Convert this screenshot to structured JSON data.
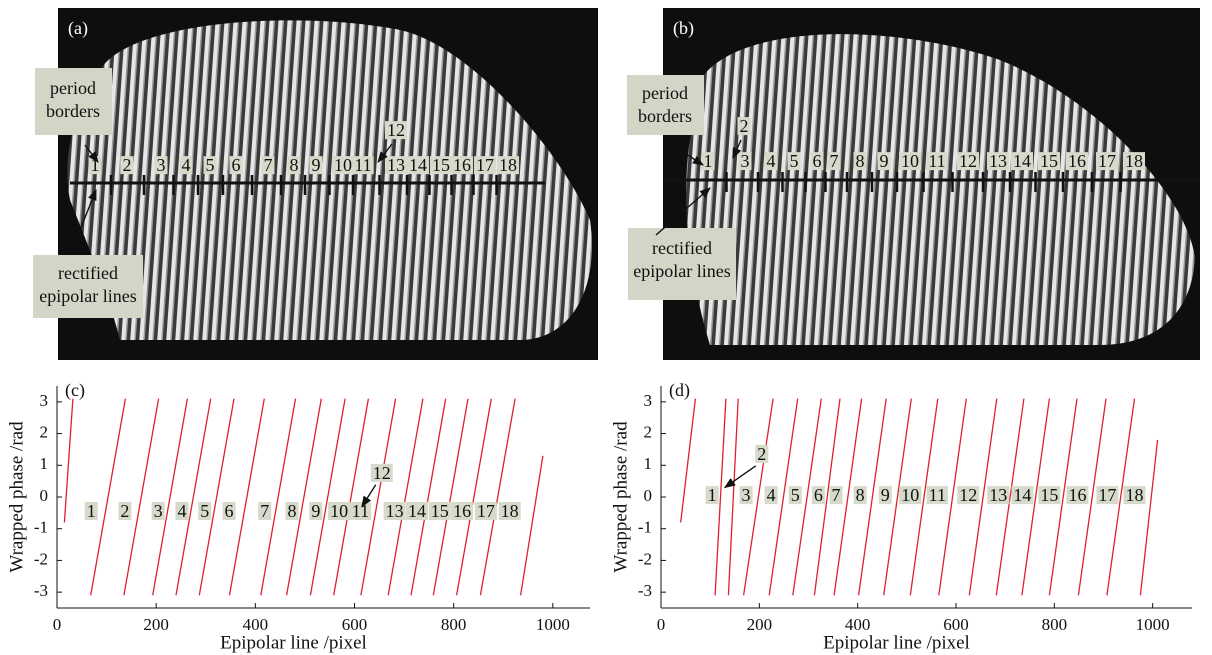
{
  "photos": [
    {
      "label": "(a)",
      "row_numbers": [
        "1",
        "2",
        "3",
        "4",
        "5",
        "6",
        "7",
        "8",
        "9",
        "10",
        "11",
        "13",
        "14",
        "15",
        "16",
        "17",
        "18"
      ],
      "callout_number": "12",
      "notes": [
        [
          "period",
          "borders"
        ],
        [
          "rectified",
          "epipolar lines"
        ]
      ]
    },
    {
      "label": "(b)",
      "row_numbers": [
        "1",
        "3",
        "4",
        "5",
        "6",
        "7",
        "8",
        "9",
        "10",
        "11",
        "12",
        "13",
        "14",
        "15",
        "16",
        "17",
        "18"
      ],
      "callout_number": "2",
      "notes": [
        [
          "period",
          "borders"
        ],
        [
          "rectified",
          "epipolar lines"
        ]
      ]
    }
  ],
  "chart_data": [
    {
      "type": "line",
      "panel": "(c)",
      "x_label": "Epipolar line /pixel",
      "y_label": "Wrapped phase /rad",
      "xlim": [
        0,
        1075
      ],
      "xticks": [
        0,
        200,
        400,
        600,
        800,
        1000
      ],
      "ylim": [
        -3.5,
        3.5
      ],
      "yticks": [
        -3,
        -2,
        -1,
        0,
        1,
        2,
        3
      ],
      "series": [
        {
          "color": "#e0202a",
          "x": [
            15,
            32,
            32,
            68,
            138,
            138,
            135,
            205,
            205,
            193,
            263,
            263,
            240,
            310,
            310,
            287,
            357,
            357,
            348,
            418,
            418,
            411,
            481,
            481,
            463,
            533,
            533,
            511,
            581,
            581,
            558,
            628,
            628,
            613,
            683,
            683,
            668,
            738,
            738,
            714,
            784,
            784,
            759,
            829,
            829,
            806,
            876,
            876,
            854,
            924,
            924,
            935,
            980
          ],
          "values": [
            -0.8,
            3.1,
            null,
            -3.1,
            3.1,
            null,
            -3.1,
            3.1,
            null,
            -3.1,
            3.1,
            null,
            -3.1,
            3.1,
            null,
            -3.1,
            3.1,
            null,
            -3.1,
            3.1,
            null,
            -3.1,
            3.1,
            null,
            -3.1,
            3.1,
            null,
            -3.1,
            3.1,
            null,
            -3.1,
            3.1,
            null,
            -3.1,
            3.1,
            null,
            -3.1,
            3.1,
            null,
            -3.1,
            3.1,
            null,
            -3.1,
            3.1,
            null,
            -3.1,
            3.1,
            null,
            -3.1,
            3.1,
            null,
            -3.1,
            1.3
          ]
        }
      ],
      "annotations": [
        {
          "text": "1",
          "x": 69,
          "y": -0.5
        },
        {
          "text": "2",
          "x": 137,
          "y": -0.5
        },
        {
          "text": "3",
          "x": 204,
          "y": -0.5
        },
        {
          "text": "4",
          "x": 252,
          "y": -0.5
        },
        {
          "text": "5",
          "x": 298,
          "y": -0.5
        },
        {
          "text": "6",
          "x": 347,
          "y": -0.5
        },
        {
          "text": "7",
          "x": 419,
          "y": -0.5
        },
        {
          "text": "8",
          "x": 474,
          "y": -0.5
        },
        {
          "text": "9",
          "x": 522,
          "y": -0.5
        },
        {
          "text": "10",
          "x": 569,
          "y": -0.5
        },
        {
          "text": "11",
          "x": 612,
          "y": -0.5
        },
        {
          "text": "13",
          "x": 681,
          "y": -0.5
        },
        {
          "text": "14",
          "x": 726,
          "y": -0.5
        },
        {
          "text": "15",
          "x": 772,
          "y": -0.5
        },
        {
          "text": "16",
          "x": 817,
          "y": -0.5
        },
        {
          "text": "17",
          "x": 865,
          "y": -0.5
        },
        {
          "text": "18",
          "x": 913,
          "y": -0.5
        },
        {
          "text": "12",
          "x": 655,
          "y": 0.7,
          "arrow_to": [
            615,
            -0.3
          ]
        }
      ]
    },
    {
      "type": "line",
      "panel": "(d)",
      "x_label": "Epipolar line /pixel",
      "y_label": "Wrapped phase /rad",
      "xlim": [
        0,
        1080
      ],
      "xticks": [
        0,
        200,
        400,
        600,
        800,
        1000
      ],
      "ylim": [
        -3.5,
        3.5
      ],
      "yticks": [
        -3,
        -2,
        -1,
        0,
        1,
        2,
        3
      ],
      "series": [
        {
          "color": "#e0202a",
          "x": [
            40,
            70,
            70,
            110,
            132,
            132,
            137,
            157,
            157,
            168,
            228,
            228,
            220,
            278,
            278,
            268,
            326,
            326,
            312,
            364,
            364,
            352,
            408,
            408,
            402,
            458,
            458,
            453,
            509,
            509,
            507,
            563,
            563,
            565,
            621,
            621,
            627,
            683,
            683,
            682,
            738,
            738,
            734,
            790,
            790,
            790,
            846,
            846,
            849,
            905,
            905,
            907,
            963,
            963,
            975,
            1010
          ],
          "values": [
            -0.8,
            3.1,
            null,
            -3.1,
            3.1,
            null,
            -3.1,
            3.1,
            null,
            -3.1,
            3.1,
            null,
            -3.1,
            3.1,
            null,
            -3.1,
            3.1,
            null,
            -3.1,
            3.1,
            null,
            -3.1,
            3.1,
            null,
            -3.1,
            3.1,
            null,
            -3.1,
            3.1,
            null,
            -3.1,
            3.1,
            null,
            -3.1,
            3.1,
            null,
            -3.1,
            3.1,
            null,
            -3.1,
            3.1,
            null,
            -3.1,
            3.1,
            null,
            -3.1,
            3.1,
            null,
            -3.1,
            3.1,
            null,
            -3.1,
            3.1,
            null,
            -3.1,
            1.8
          ]
        }
      ],
      "annotations": [
        {
          "text": "1",
          "x": 104,
          "y": 0
        },
        {
          "text": "3",
          "x": 173,
          "y": 0
        },
        {
          "text": "4",
          "x": 224,
          "y": 0
        },
        {
          "text": "5",
          "x": 273,
          "y": 0
        },
        {
          "text": "6",
          "x": 320,
          "y": 0
        },
        {
          "text": "7",
          "x": 356,
          "y": 0
        },
        {
          "text": "8",
          "x": 405,
          "y": 0
        },
        {
          "text": "9",
          "x": 456,
          "y": 0
        },
        {
          "text": "10",
          "x": 507,
          "y": 0
        },
        {
          "text": "11",
          "x": 562,
          "y": 0
        },
        {
          "text": "12",
          "x": 625,
          "y": 0
        },
        {
          "text": "13",
          "x": 686,
          "y": 0
        },
        {
          "text": "14",
          "x": 735,
          "y": 0
        },
        {
          "text": "15",
          "x": 790,
          "y": 0
        },
        {
          "text": "16",
          "x": 847,
          "y": 0
        },
        {
          "text": "17",
          "x": 908,
          "y": 0
        },
        {
          "text": "18",
          "x": 963,
          "y": 0
        },
        {
          "text": "2",
          "x": 205,
          "y": 1.3,
          "arrow_to": [
            130,
            0.3
          ]
        }
      ]
    }
  ]
}
